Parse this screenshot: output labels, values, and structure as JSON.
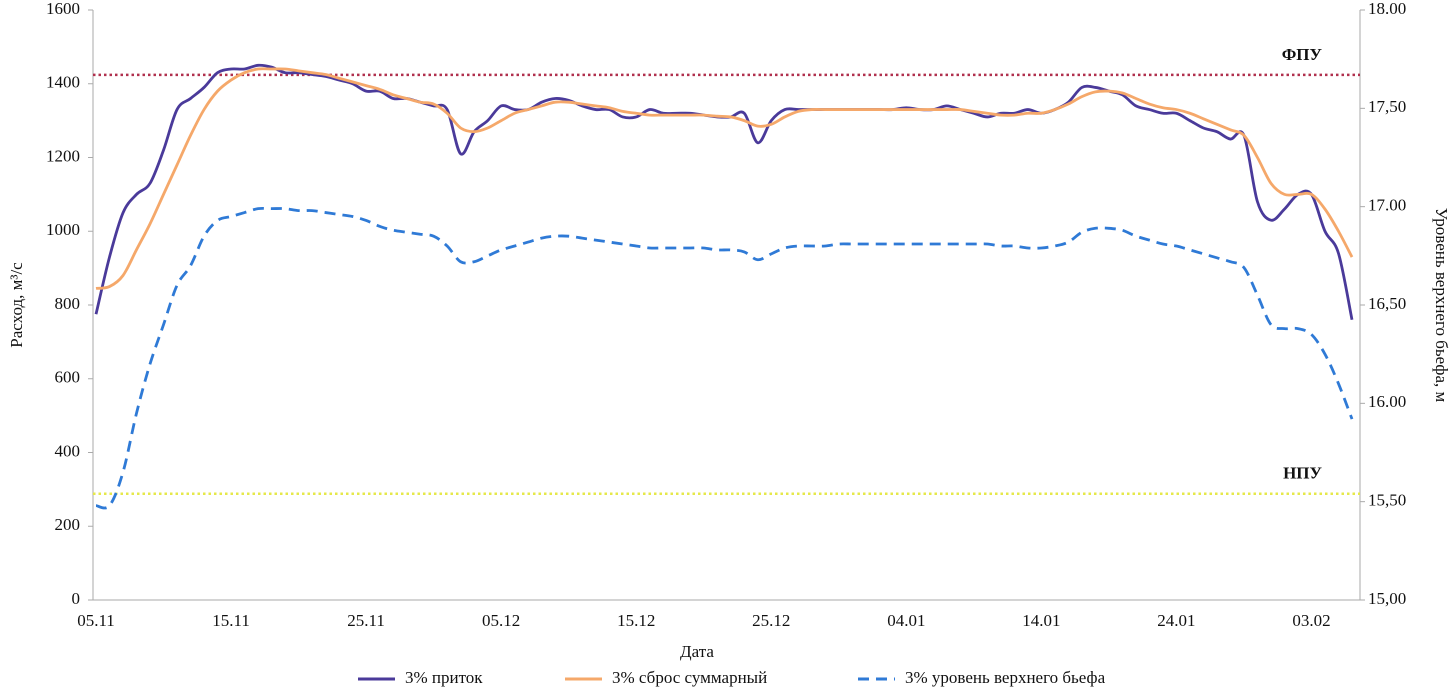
{
  "chart_data": {
    "type": "line",
    "x_label": "Дата",
    "y_label": "Расход, м³/с",
    "y2_label": "Уровень верхнего бьефа, м",
    "categories": [
      "05.11",
      null,
      null,
      null,
      null,
      null,
      null,
      null,
      null,
      null,
      "15.11",
      null,
      null,
      null,
      null,
      null,
      null,
      null,
      null,
      null,
      "25.11",
      null,
      null,
      null,
      null,
      null,
      null,
      null,
      null,
      null,
      "05.12",
      null,
      null,
      null,
      null,
      null,
      null,
      null,
      null,
      null,
      "15.12",
      null,
      null,
      null,
      null,
      null,
      null,
      null,
      null,
      null,
      "25.12",
      null,
      null,
      null,
      null,
      null,
      null,
      null,
      null,
      null,
      "04.01",
      null,
      null,
      null,
      null,
      null,
      null,
      null,
      null,
      null,
      "14.01",
      null,
      null,
      null,
      null,
      null,
      null,
      null,
      null,
      null,
      "24.01",
      null,
      null,
      null,
      null,
      null,
      null,
      null,
      null,
      null,
      "03.02",
      null,
      null,
      null
    ],
    "ylim": [
      0,
      1600
    ],
    "yticks": [
      0,
      200,
      400,
      600,
      800,
      1000,
      1200,
      1400,
      1600
    ],
    "y2lim": [
      15,
      18
    ],
    "y2ticks": [
      {
        "value": 15,
        "label": "15,00"
      },
      {
        "value": 15.5,
        "label": "15,50"
      },
      {
        "value": 16,
        "label": "16.00"
      },
      {
        "value": 16.5,
        "label": "16,50"
      },
      {
        "value": 17,
        "label": "17.00"
      },
      {
        "value": 17.5,
        "label": "17,50"
      },
      {
        "value": 18,
        "label": "18.00"
      }
    ],
    "grid": false,
    "legend": "bottom",
    "series": [
      {
        "name": "3% приток",
        "color": "#4a3a9a",
        "values": [
          775,
          930,
          1050,
          1100,
          1130,
          1220,
          1330,
          1360,
          1390,
          1430,
          1440,
          1440,
          1450,
          1445,
          1430,
          1430,
          1425,
          1420,
          1410,
          1400,
          1380,
          1380,
          1360,
          1360,
          1350,
          1340,
          1330,
          1210,
          1270,
          1300,
          1340,
          1330,
          1330,
          1350,
          1360,
          1355,
          1340,
          1330,
          1330,
          1310,
          1310,
          1330,
          1320,
          1320,
          1320,
          1315,
          1310,
          1310,
          1320,
          1240,
          1300,
          1330,
          1330,
          1330,
          1330,
          1330,
          1330,
          1330,
          1330,
          1330,
          1335,
          1330,
          1330,
          1340,
          1330,
          1320,
          1310,
          1320,
          1320,
          1330,
          1320,
          1330,
          1350,
          1390,
          1390,
          1380,
          1370,
          1340,
          1330,
          1320,
          1320,
          1300,
          1280,
          1270,
          1250,
          1260,
          1080,
          1030,
          1060,
          1100,
          1100,
          1000,
          940,
          760
        ]
      },
      {
        "name": "3% сброс суммарный",
        "color": "#f5a86a",
        "values": [
          845,
          850,
          880,
          950,
          1020,
          1100,
          1180,
          1260,
          1330,
          1380,
          1410,
          1430,
          1440,
          1440,
          1440,
          1435,
          1430,
          1425,
          1415,
          1405,
          1395,
          1385,
          1370,
          1360,
          1350,
          1345,
          1320,
          1280,
          1270,
          1280,
          1300,
          1320,
          1330,
          1340,
          1350,
          1350,
          1345,
          1340,
          1335,
          1325,
          1320,
          1315,
          1315,
          1315,
          1315,
          1315,
          1312,
          1310,
          1300,
          1285,
          1290,
          1310,
          1325,
          1330,
          1330,
          1330,
          1330,
          1330,
          1330,
          1330,
          1330,
          1330,
          1330,
          1330,
          1330,
          1325,
          1320,
          1315,
          1315,
          1320,
          1320,
          1330,
          1345,
          1365,
          1378,
          1380,
          1375,
          1360,
          1345,
          1335,
          1330,
          1320,
          1305,
          1290,
          1275,
          1260,
          1200,
          1130,
          1100,
          1100,
          1100,
          1060,
          1000,
          930
        ]
      },
      {
        "name": "3% уровень верхнего бьефа",
        "color": "#2f7ad6",
        "dashed": true,
        "axis": "y2",
        "values": [
          15.48,
          15.48,
          15.65,
          15.95,
          16.2,
          16.4,
          16.6,
          16.7,
          16.85,
          16.93,
          16.95,
          16.97,
          16.99,
          16.99,
          16.99,
          16.98,
          16.98,
          16.97,
          16.96,
          16.95,
          16.93,
          16.9,
          16.88,
          16.87,
          16.86,
          16.85,
          16.8,
          16.72,
          16.72,
          16.75,
          16.78,
          16.8,
          16.82,
          16.84,
          16.85,
          16.85,
          16.84,
          16.83,
          16.82,
          16.81,
          16.8,
          16.79,
          16.79,
          16.79,
          16.79,
          16.79,
          16.78,
          16.78,
          16.77,
          16.73,
          16.76,
          16.79,
          16.8,
          16.8,
          16.8,
          16.81,
          16.81,
          16.81,
          16.81,
          16.81,
          16.81,
          16.81,
          16.81,
          16.81,
          16.81,
          16.81,
          16.81,
          16.8,
          16.8,
          16.79,
          16.79,
          16.8,
          16.82,
          16.87,
          16.89,
          16.89,
          16.88,
          16.85,
          16.83,
          16.81,
          16.8,
          16.78,
          16.76,
          16.74,
          16.72,
          16.69,
          16.55,
          16.4,
          16.38,
          16.38,
          16.35,
          16.25,
          16.1,
          15.92
        ]
      }
    ],
    "reference_lines": [
      {
        "label": "ФПУ",
        "value": 17.67,
        "axis": "y2",
        "color": "#b0304e"
      },
      {
        "label": "НПУ",
        "value": 15.54,
        "axis": "y2",
        "color": "#e6e84a"
      }
    ]
  }
}
